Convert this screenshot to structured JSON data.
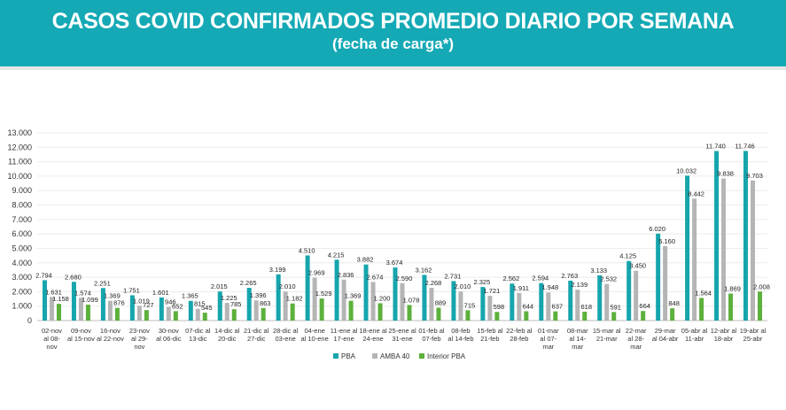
{
  "header": {
    "title": "CASOS COVID CONFIRMADOS PROMEDIO DIARIO POR SEMANA",
    "subtitle": "(fecha de carga*)"
  },
  "colors": {
    "header_bg": "#14a9b5",
    "pba": "#16a5ad",
    "amba40": "#b5b5b5",
    "interior": "#5cb03c"
  },
  "chart_data": {
    "type": "bar",
    "title": "CASOS COVID CONFIRMADOS PROMEDIO DIARIO POR SEMANA",
    "subtitle": "(fecha de carga*)",
    "ylim": [
      0,
      13000
    ],
    "yticks": [
      "0",
      "1.000",
      "2.000",
      "3.000",
      "4.000",
      "5.000",
      "6.000",
      "7.000",
      "8.000",
      "9.000",
      "10.000",
      "11.000",
      "12.000",
      "13.000"
    ],
    "legend_position": "bottom-center",
    "categories": [
      [
        "02-nov",
        "al 08-",
        "nov"
      ],
      [
        "09-nov",
        "al 15-nov"
      ],
      [
        "16-nov",
        "al 22-nov"
      ],
      [
        "23-nov",
        "al 29-",
        "nov"
      ],
      [
        "30-nov",
        "al 06-dic"
      ],
      [
        "07-dic al",
        "13-dic"
      ],
      [
        "14-dic al",
        "20-dic"
      ],
      [
        "21-dic al",
        "27-dic"
      ],
      [
        "28-dic al",
        "03-ene"
      ],
      [
        "04-ene",
        "al 10-ene"
      ],
      [
        "11-ene al",
        "17-ene"
      ],
      [
        "18-ene al",
        "24-ene"
      ],
      [
        "25-ene al",
        "31-ene"
      ],
      [
        "01-feb al",
        "07-feb"
      ],
      [
        "08-feb",
        "al 14-feb"
      ],
      [
        "15-feb al",
        "21-feb"
      ],
      [
        "22-feb al",
        "28-feb"
      ],
      [
        "01-mar",
        "al 07-",
        "mar"
      ],
      [
        "08-mar",
        "al 14-",
        "mar"
      ],
      [
        "15-mar al",
        "21-mar"
      ],
      [
        "22-mar",
        "al 28-",
        "mar"
      ],
      [
        "29-mar",
        "al 04-abr"
      ],
      [
        "05-abr al",
        "11-abr"
      ],
      [
        "12-abr al",
        "18-abr"
      ],
      [
        "19-abr al",
        "25-abr"
      ]
    ],
    "series": [
      {
        "name": "PBA",
        "values": [
          2794,
          2680,
          2251,
          1751,
          1601,
          1365,
          2015,
          2265,
          3199,
          4510,
          4215,
          3882,
          3674,
          3162,
          2731,
          2325,
          2562,
          2594,
          2763,
          3133,
          4125,
          6020,
          10032,
          11740,
          11746
        ],
        "labels": [
          "2.794",
          "2.680",
          "2.251",
          "1.751",
          "1.601",
          "1.365",
          "2.015",
          "2.265",
          "3.199",
          "4.510",
          "4.215",
          "3.882",
          "3.674",
          "3.162",
          "2.731",
          "2.325",
          "2.562",
          "2.594",
          "2.763",
          "3.133",
          "4.125",
          "6.020",
          "10.032",
          "11.740",
          "11.746"
        ]
      },
      {
        "name": "AMBA 40",
        "values": [
          1631,
          1574,
          1369,
          1019,
          946,
          815,
          1225,
          1396,
          2010,
          2969,
          2836,
          2674,
          2590,
          2268,
          2010,
          1721,
          1911,
          1948,
          2139,
          2532,
          3450,
          5160,
          8442,
          9838,
          9703
        ],
        "labels": [
          "1.631",
          "1.574",
          "1.369",
          "1.019",
          "946",
          "815",
          "1.225",
          "1.396",
          "2.010",
          "2.969",
          "2.836",
          "2.674",
          "2.590",
          "2.268",
          "2.010",
          "1.721",
          "1.911",
          "1.948",
          "2.139",
          "2.532",
          "3.450",
          "5.160",
          "8.442",
          "9.838",
          "9.703"
        ]
      },
      {
        "name": "Interior PBA",
        "values": [
          1158,
          1099,
          876,
          727,
          652,
          545,
          785,
          863,
          1182,
          1529,
          1369,
          1200,
          1078,
          889,
          715,
          598,
          644,
          637,
          618,
          591,
          664,
          848,
          1564,
          1869,
          2008
        ],
        "labels": [
          "1.158",
          "1.099",
          "876",
          "727",
          "652",
          "545",
          "785",
          "863",
          "1.182",
          "1.529",
          "1.369",
          "1.200",
          "1.078",
          "889",
          "715",
          "598",
          "644",
          "637",
          "618",
          "591",
          "664",
          "848",
          "1.564",
          "1.869",
          "2.008"
        ]
      }
    ]
  }
}
